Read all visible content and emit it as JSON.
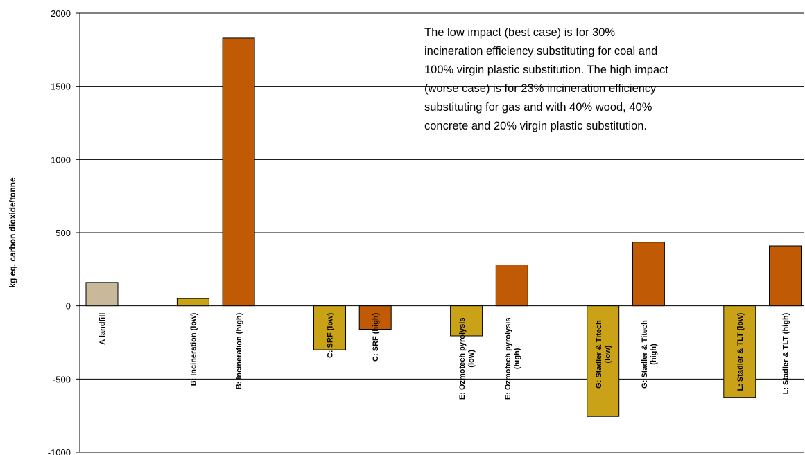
{
  "chart_data": {
    "type": "bar",
    "ylabel": "kg eq. carbon dioxide/tonne",
    "ylim": [
      -1000,
      2000
    ],
    "yticks": [
      2000,
      1500,
      1000,
      500,
      0,
      -500,
      -1000
    ],
    "grid": true,
    "annotation": "The low impact (best case) is for 30% incineration efficiency substituting for coal and 100% virgin plastic substitution.  The high impact (worse case) is for 23% incineration efficiency substituting for gas and with 40% wood, 40% concrete and 20% virgin plastic substitution.",
    "colors": {
      "landfill": "#c9b99a",
      "low": "#c9a217",
      "high": "#c05a04"
    },
    "bars": [
      {
        "label": [
          "A landfill"
        ],
        "value": 160,
        "kind": "landfill",
        "slot": 0
      },
      {
        "label": [
          "B: Incineration (low)"
        ],
        "value": 50,
        "kind": "low",
        "slot": 2
      },
      {
        "label": [
          "B: Incineration (high)"
        ],
        "value": 1830,
        "kind": "high",
        "slot": 3
      },
      {
        "label": [
          "C: SRF (low)"
        ],
        "value": -300,
        "kind": "low",
        "slot": 5
      },
      {
        "label": [
          "C: SRF (high)"
        ],
        "value": -160,
        "kind": "high",
        "slot": 6
      },
      {
        "label": [
          "E: Ozmotech pyrolysis",
          "(low)"
        ],
        "value": -205,
        "kind": "low",
        "slot": 8
      },
      {
        "label": [
          "E: Ozmotech pyrolysis",
          "(high)"
        ],
        "value": 280,
        "kind": "high",
        "slot": 9
      },
      {
        "label": [
          "G: Stadler & Titech",
          "(low)"
        ],
        "value": -755,
        "kind": "low",
        "slot": 11
      },
      {
        "label": [
          "G: Stadler & Titech",
          "(high)"
        ],
        "value": 435,
        "kind": "high",
        "slot": 12
      },
      {
        "label": [
          "L: Stadler & TLT (low)"
        ],
        "value": -625,
        "kind": "low",
        "slot": 14
      },
      {
        "label": [
          "L: Stadler & TLT (high)"
        ],
        "value": 410,
        "kind": "high",
        "slot": 15
      }
    ]
  }
}
